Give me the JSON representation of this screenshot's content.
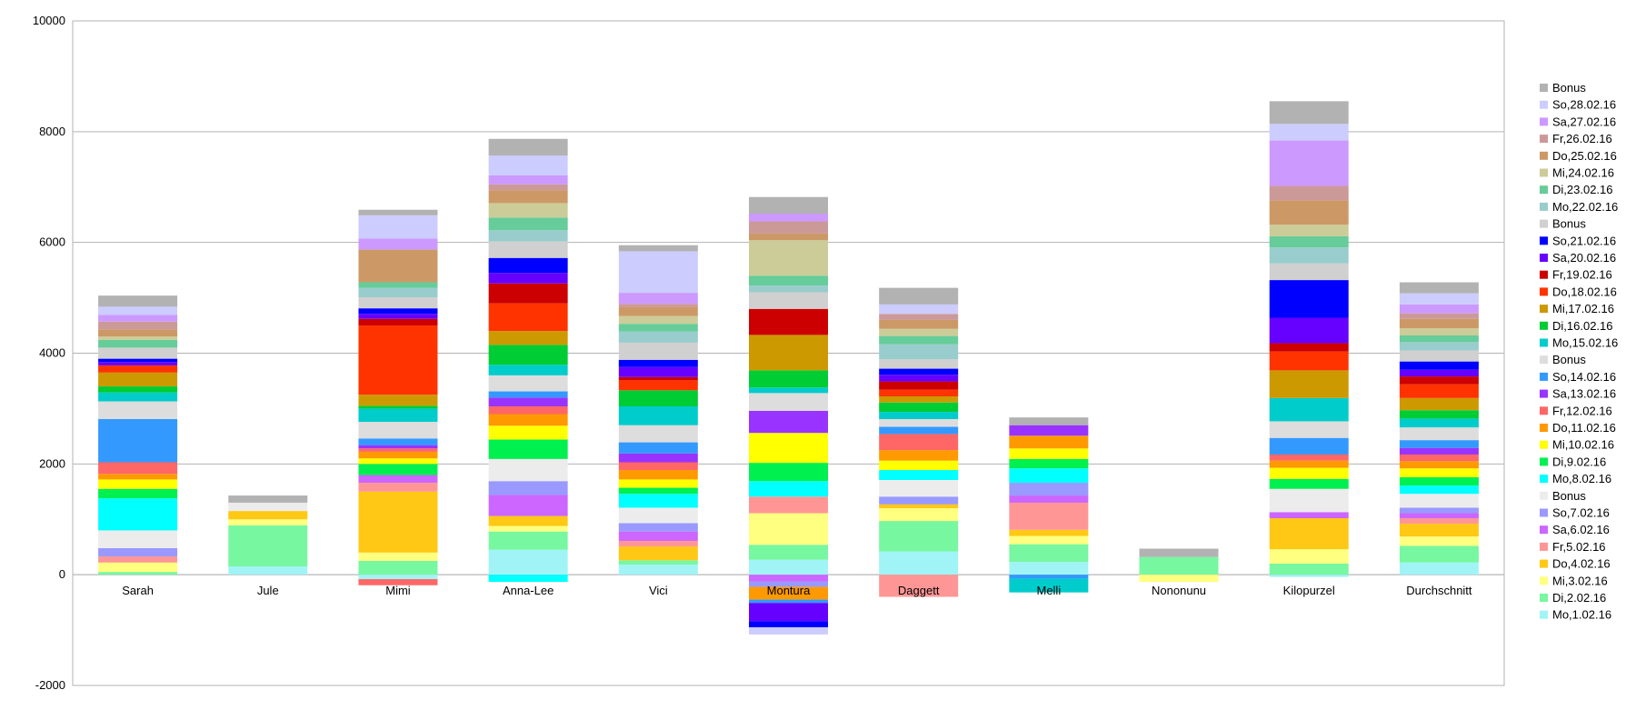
{
  "chart_data": {
    "type": "bar",
    "stacked": true,
    "title": "",
    "xlabel": "",
    "ylabel": "",
    "ylim": [
      -2000,
      10000
    ],
    "yticks": [
      10000,
      8000,
      6000,
      4000,
      2000,
      0,
      -2000
    ],
    "grid": true,
    "legend_position": "right",
    "categories": [
      "Sarah",
      "Jule",
      "Mimi",
      "Anna-Lee",
      "Vici",
      "Montura",
      "Daggett",
      "Melli",
      "Nononunu",
      "Kilopurzel",
      "Durchschnitt"
    ],
    "series": [
      {
        "name": "Mo,1.02.16",
        "color": "#a0f4f6",
        "values": [
          0,
          150,
          -80,
          450,
          180,
          270,
          420,
          230,
          0,
          0,
          220
        ]
      },
      {
        "name": "Di,2.02.16",
        "color": "#77f7a0",
        "values": [
          50,
          740,
          250,
          330,
          80,
          270,
          550,
          320,
          320,
          200,
          300
        ]
      },
      {
        "name": "Mi,3.02.16",
        "color": "#ffff80",
        "values": [
          170,
          110,
          150,
          100,
          0,
          570,
          230,
          150,
          -130,
          260,
          170
        ]
      },
      {
        "name": "Do,4.02.16",
        "color": "#ffc814",
        "values": [
          0,
          150,
          1100,
          180,
          250,
          0,
          70,
          110,
          0,
          560,
          230
        ]
      },
      {
        "name": "Fr,5.02.16",
        "color": "#ff9696",
        "values": [
          110,
          0,
          160,
          0,
          100,
          300,
          -400,
          490,
          0,
          0,
          100
        ]
      },
      {
        "name": "Sa,6.02.16",
        "color": "#cc66ff",
        "values": [
          0,
          0,
          140,
          380,
          170,
          0,
          0,
          130,
          0,
          110,
          90
        ]
      },
      {
        "name": "So,7.02.16",
        "color": "#9999ff",
        "values": [
          150,
          0,
          0,
          250,
          150,
          0,
          140,
          230,
          0,
          0,
          100
        ]
      },
      {
        "name": "Bonus",
        "color": "#ececec",
        "values": [
          320,
          150,
          0,
          400,
          280,
          0,
          300,
          0,
          0,
          420,
          250
        ]
      },
      {
        "name": "Mo,8.02.16",
        "color": "#00ffff",
        "values": [
          580,
          0,
          0,
          0,
          250,
          280,
          180,
          260,
          0,
          0,
          150
        ]
      },
      {
        "name": "Di,9.02.16",
        "color": "#00f050",
        "values": [
          170,
          0,
          200,
          350,
          110,
          330,
          0,
          170,
          0,
          180,
          150
        ]
      },
      {
        "name": "Mi,10.02.16",
        "color": "#ffff00",
        "values": [
          170,
          0,
          100,
          250,
          150,
          540,
          170,
          190,
          0,
          200,
          160
        ]
      },
      {
        "name": "Do,11.02.16",
        "color": "#ff9900",
        "values": [
          100,
          0,
          120,
          210,
          170,
          0,
          190,
          230,
          0,
          130,
          130
        ]
      },
      {
        "name": "Fr,12.02.16",
        "color": "#ff6666",
        "values": [
          210,
          0,
          60,
          140,
          140,
          0,
          290,
          0,
          0,
          110,
          120
        ]
      },
      {
        "name": "Sa,13.02.16",
        "color": "#9933ff",
        "values": [
          0,
          0,
          60,
          160,
          160,
          400,
          0,
          190,
          0,
          0,
          120
        ]
      },
      {
        "name": "So,14.02.16",
        "color": "#3399ff",
        "values": [
          780,
          0,
          120,
          110,
          200,
          0,
          130,
          0,
          0,
          300,
          140
        ]
      },
      {
        "name": "Bonus",
        "color": "#dddddd",
        "values": [
          320,
          0,
          300,
          290,
          310,
          320,
          140,
          0,
          0,
          300,
          230
        ]
      },
      {
        "name": "Mo,15.02.16",
        "color": "#00cccc",
        "values": [
          160,
          0,
          240,
          190,
          340,
          100,
          130,
          0,
          0,
          420,
          160
        ]
      },
      {
        "name": "Di,16.02.16",
        "color": "#00cc33",
        "values": [
          110,
          0,
          50,
          360,
          290,
          310,
          170,
          0,
          0,
          0,
          150
        ]
      },
      {
        "name": "Mi,17.02.16",
        "color": "#cc9900",
        "values": [
          250,
          0,
          200,
          250,
          0,
          640,
          110,
          0,
          0,
          500,
          220
        ]
      },
      {
        "name": "Do,18.02.16",
        "color": "#ff3300",
        "values": [
          130,
          0,
          1250,
          500,
          180,
          0,
          120,
          0,
          0,
          340,
          250
        ]
      },
      {
        "name": "Fr,19.02.16",
        "color": "#cc0000",
        "values": [
          0,
          0,
          120,
          360,
          60,
          470,
          150,
          0,
          0,
          150,
          140
        ]
      },
      {
        "name": "Sa,20.02.16",
        "color": "#6600ff",
        "values": [
          60,
          0,
          90,
          190,
          180,
          0,
          120,
          0,
          0,
          460,
          120
        ]
      },
      {
        "name": "So,21.02.16",
        "color": "#0000ff",
        "values": [
          60,
          0,
          100,
          270,
          130,
          0,
          110,
          0,
          0,
          680,
          150
        ]
      },
      {
        "name": "Bonus",
        "color": "#d0d0d0",
        "values": [
          200,
          0,
          200,
          300,
          310,
          300,
          170,
          0,
          0,
          300,
          200
        ]
      },
      {
        "name": "Mo,22.02.16",
        "color": "#99cccc",
        "values": [
          0,
          0,
          170,
          200,
          200,
          120,
          270,
          0,
          0,
          290,
          150
        ]
      },
      {
        "name": "Di,23.02.16",
        "color": "#66cc99",
        "values": [
          140,
          0,
          100,
          230,
          140,
          180,
          150,
          0,
          0,
          200,
          120
        ]
      },
      {
        "name": "Mi,24.02.16",
        "color": "#cccc99",
        "values": [
          60,
          0,
          0,
          260,
          140,
          640,
          130,
          0,
          0,
          210,
          130
        ]
      },
      {
        "name": "Do,25.02.16",
        "color": "#cc9966",
        "values": [
          130,
          0,
          590,
          230,
          160,
          120,
          160,
          0,
          0,
          440,
          170
        ]
      },
      {
        "name": "Fr,26.02.16",
        "color": "#cc9999",
        "values": [
          140,
          0,
          0,
          110,
          60,
          220,
          110,
          0,
          0,
          260,
          100
        ]
      },
      {
        "name": "Sa,27.02.16",
        "color": "#cc99ff",
        "values": [
          120,
          0,
          200,
          160,
          200,
          140,
          0,
          0,
          0,
          820,
          160
        ]
      },
      {
        "name": "So,28.02.16",
        "color": "#ccccff",
        "values": [
          150,
          0,
          420,
          360,
          750,
          0,
          170,
          0,
          0,
          300,
          200
        ]
      },
      {
        "name": "Bonus",
        "color": "#b2b2b2",
        "values": [
          200,
          130,
          100,
          300,
          110,
          300,
          300,
          140,
          150,
          410,
          200
        ]
      }
    ],
    "negatives": [
      [],
      [],
      [
        {
          "color": "#ff6666",
          "value": -110
        }
      ],
      [
        {
          "color": "#00ffff",
          "value": -130
        }
      ],
      [],
      [
        {
          "color": "#cc66ff",
          "value": -120
        },
        {
          "color": "#9999ff",
          "value": -100
        },
        {
          "color": "#ff9900",
          "value": -230
        },
        {
          "color": "#3399ff",
          "value": -60
        },
        {
          "color": "#6600ff",
          "value": -330
        },
        {
          "color": "#0000ff",
          "value": -110
        },
        {
          "color": "#ccccff",
          "value": -130
        }
      ],
      [],
      [
        {
          "color": "#3399ff",
          "value": -70
        },
        {
          "color": "#00cccc",
          "value": -250
        }
      ],
      [],
      [
        {
          "color": "#a0f4f6",
          "value": -40
        }
      ],
      []
    ]
  }
}
